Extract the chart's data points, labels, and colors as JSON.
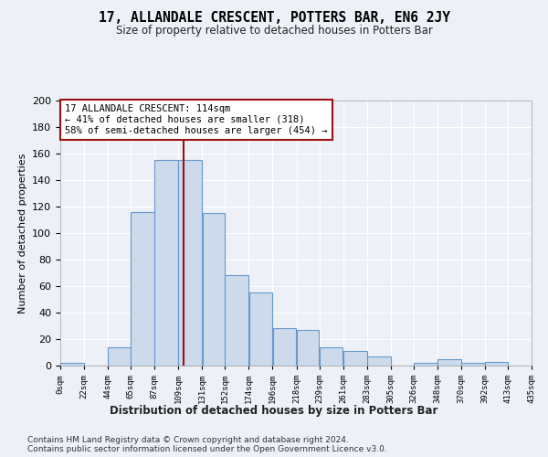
{
  "title": "17, ALLANDALE CRESCENT, POTTERS BAR, EN6 2JY",
  "subtitle": "Size of property relative to detached houses in Potters Bar",
  "xlabel": "Distribution of detached houses by size in Potters Bar",
  "ylabel": "Number of detached properties",
  "bar_color": "#ccdaec",
  "bar_edge_color": "#6699cc",
  "bar_left_edges": [
    0,
    22,
    44,
    65,
    87,
    109,
    131,
    152,
    174,
    196,
    218,
    239,
    261,
    283,
    305,
    326,
    348,
    370,
    392,
    413
  ],
  "bar_widths": [
    22,
    22,
    21,
    22,
    22,
    22,
    21,
    22,
    22,
    22,
    21,
    22,
    22,
    22,
    21,
    22,
    22,
    22,
    21,
    22
  ],
  "bar_heights": [
    2,
    0,
    14,
    116,
    155,
    155,
    115,
    68,
    55,
    28,
    27,
    14,
    11,
    7,
    0,
    2,
    5,
    2,
    3,
    0
  ],
  "tick_labels": [
    "0sqm",
    "22sqm",
    "44sqm",
    "65sqm",
    "87sqm",
    "109sqm",
    "131sqm",
    "152sqm",
    "174sqm",
    "196sqm",
    "218sqm",
    "239sqm",
    "261sqm",
    "283sqm",
    "305sqm",
    "326sqm",
    "348sqm",
    "370sqm",
    "392sqm",
    "413sqm",
    "435sqm"
  ],
  "ylim": [
    0,
    200
  ],
  "yticks": [
    0,
    20,
    40,
    60,
    80,
    100,
    120,
    140,
    160,
    180,
    200
  ],
  "vline_x": 114,
  "vline_color": "#9b1010",
  "annotation_text": "17 ALLANDALE CRESCENT: 114sqm\n← 41% of detached houses are smaller (318)\n58% of semi-detached houses are larger (454) →",
  "annotation_box_color": "#ffffff",
  "annotation_box_edge": "#9b1010",
  "footer_line1": "Contains HM Land Registry data © Crown copyright and database right 2024.",
  "footer_line2": "Contains public sector information licensed under the Open Government Licence v3.0.",
  "bg_color": "#edf1f7",
  "plot_bg_color": "#edf1f7",
  "grid_color": "#ffffff"
}
